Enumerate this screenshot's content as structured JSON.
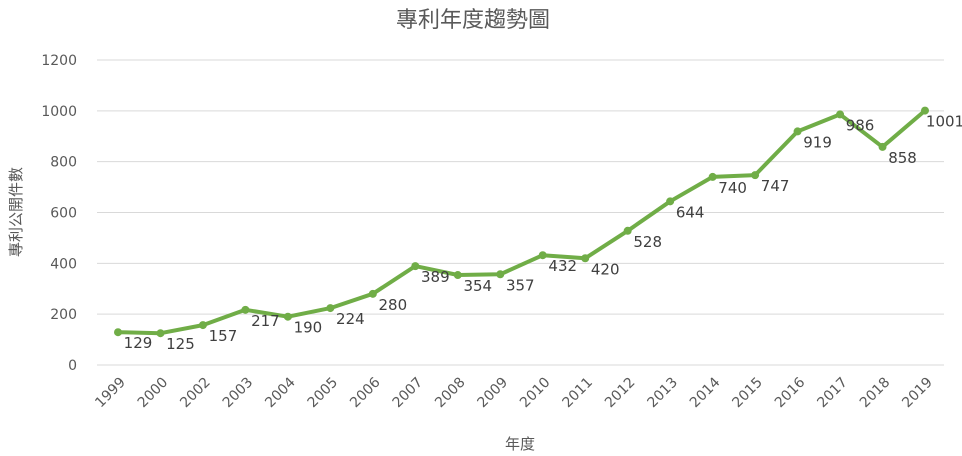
{
  "chart_data": {
    "type": "line",
    "title": "專利年度趨勢圖",
    "xlabel": "年度",
    "ylabel": "專利公開件數",
    "ylim": [
      0,
      1200
    ],
    "yticks": [
      0,
      200,
      400,
      600,
      800,
      1000,
      1200
    ],
    "grid": true,
    "legend": "none",
    "color": "#70ad47",
    "categories": [
      "1999",
      "2000",
      "2002",
      "2003",
      "2004",
      "2005",
      "2006",
      "2007",
      "2008",
      "2009",
      "2010",
      "2011",
      "2012",
      "2013",
      "2014",
      "2015",
      "2016",
      "2017",
      "2018",
      "2019"
    ],
    "series": [
      {
        "values": [
          129,
          125,
          157,
          217,
          190,
          224,
          280,
          389,
          354,
          357,
          432,
          420,
          528,
          644,
          740,
          747,
          919,
          986,
          858,
          1001
        ]
      }
    ]
  }
}
